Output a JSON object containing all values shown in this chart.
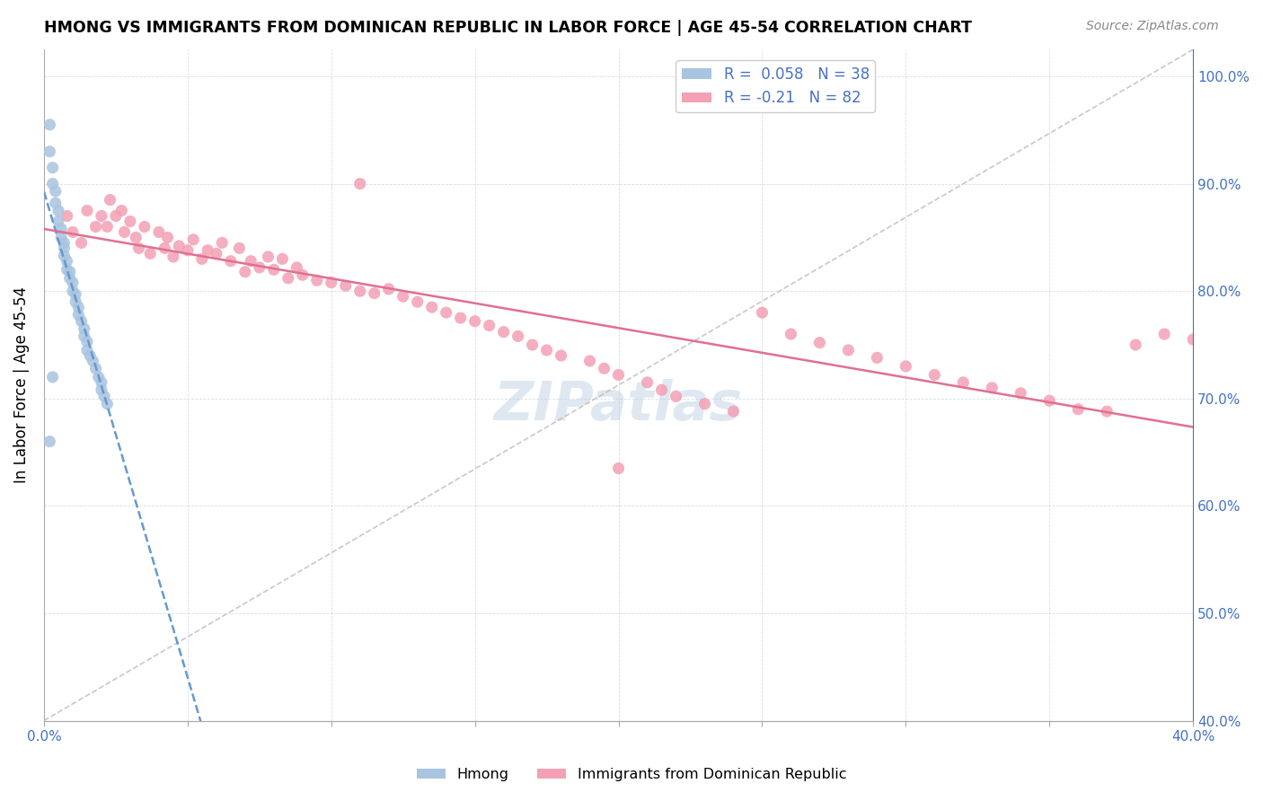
{
  "title": "HMONG VS IMMIGRANTS FROM DOMINICAN REPUBLIC IN LABOR FORCE | AGE 45-54 CORRELATION CHART",
  "source": "Source: ZipAtlas.com",
  "ylabel": "In Labor Force | Age 45-54",
  "xlim": [
    0.0,
    0.4
  ],
  "ylim": [
    0.4,
    1.025
  ],
  "xticks": [
    0.0,
    0.05,
    0.1,
    0.15,
    0.2,
    0.25,
    0.3,
    0.35,
    0.4
  ],
  "yticks_right": [
    0.4,
    0.5,
    0.6,
    0.7,
    0.8,
    0.9,
    1.0
  ],
  "yticklabels_right": [
    "40.0%",
    "50.0%",
    "60.0%",
    "70.0%",
    "80.0%",
    "90.0%",
    "100.0%"
  ],
  "hmong_color": "#a8c4e0",
  "dr_color": "#f4a0b5",
  "hmong_trend_color": "#6699cc",
  "dr_trend_color": "#e07090",
  "ref_line_color": "#bbbbbb",
  "hmong_R": 0.058,
  "hmong_N": 38,
  "dr_R": -0.21,
  "dr_N": 82,
  "legend_label_hmong": "Hmong",
  "legend_label_dr": "Immigrants from Dominican Republic",
  "watermark": "ZIPatlas",
  "grid_color": "#d0dce8",
  "hmong_x": [
    0.002,
    0.002,
    0.003,
    0.003,
    0.004,
    0.004,
    0.005,
    0.005,
    0.006,
    0.006,
    0.007,
    0.007,
    0.007,
    0.008,
    0.008,
    0.009,
    0.009,
    0.01,
    0.01,
    0.011,
    0.011,
    0.012,
    0.012,
    0.013,
    0.014,
    0.014,
    0.015,
    0.015,
    0.016,
    0.017,
    0.018,
    0.019,
    0.02,
    0.02,
    0.021,
    0.022,
    0.002,
    0.003
  ],
  "hmong_y": [
    0.955,
    0.93,
    0.915,
    0.9,
    0.893,
    0.882,
    0.875,
    0.865,
    0.858,
    0.85,
    0.845,
    0.84,
    0.833,
    0.828,
    0.82,
    0.818,
    0.812,
    0.808,
    0.8,
    0.797,
    0.79,
    0.785,
    0.778,
    0.772,
    0.765,
    0.758,
    0.753,
    0.745,
    0.74,
    0.735,
    0.728,
    0.72,
    0.715,
    0.708,
    0.702,
    0.695,
    0.66,
    0.72
  ],
  "dr_x": [
    0.008,
    0.01,
    0.013,
    0.015,
    0.018,
    0.02,
    0.022,
    0.023,
    0.025,
    0.027,
    0.028,
    0.03,
    0.032,
    0.033,
    0.035,
    0.037,
    0.04,
    0.042,
    0.043,
    0.045,
    0.047,
    0.05,
    0.052,
    0.055,
    0.057,
    0.06,
    0.062,
    0.065,
    0.068,
    0.07,
    0.072,
    0.075,
    0.078,
    0.08,
    0.083,
    0.085,
    0.088,
    0.09,
    0.095,
    0.1,
    0.105,
    0.11,
    0.115,
    0.12,
    0.125,
    0.13,
    0.135,
    0.14,
    0.145,
    0.15,
    0.155,
    0.16,
    0.165,
    0.17,
    0.175,
    0.18,
    0.19,
    0.195,
    0.2,
    0.21,
    0.215,
    0.22,
    0.23,
    0.24,
    0.25,
    0.26,
    0.27,
    0.28,
    0.29,
    0.3,
    0.31,
    0.32,
    0.33,
    0.34,
    0.35,
    0.36,
    0.37,
    0.38,
    0.39,
    0.4,
    0.11,
    0.2
  ],
  "dr_y": [
    0.87,
    0.855,
    0.845,
    0.875,
    0.86,
    0.87,
    0.86,
    0.885,
    0.87,
    0.875,
    0.855,
    0.865,
    0.85,
    0.84,
    0.86,
    0.835,
    0.855,
    0.84,
    0.85,
    0.832,
    0.842,
    0.838,
    0.848,
    0.83,
    0.838,
    0.835,
    0.845,
    0.828,
    0.84,
    0.818,
    0.828,
    0.822,
    0.832,
    0.82,
    0.83,
    0.812,
    0.822,
    0.815,
    0.81,
    0.808,
    0.805,
    0.8,
    0.798,
    0.802,
    0.795,
    0.79,
    0.785,
    0.78,
    0.775,
    0.772,
    0.768,
    0.762,
    0.758,
    0.75,
    0.745,
    0.74,
    0.735,
    0.728,
    0.722,
    0.715,
    0.708,
    0.702,
    0.695,
    0.688,
    0.78,
    0.76,
    0.752,
    0.745,
    0.738,
    0.73,
    0.722,
    0.715,
    0.71,
    0.705,
    0.698,
    0.69,
    0.688,
    0.75,
    0.76,
    0.755,
    0.9,
    0.635
  ]
}
